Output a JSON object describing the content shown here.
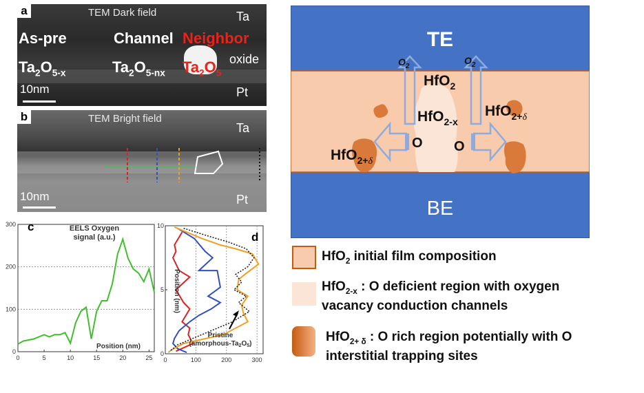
{
  "panel_a": {
    "letter": "a",
    "title": "TEM Dark field",
    "label_top_right": "Ta",
    "label_oxide": "oxide",
    "label_bottom_right": "Pt",
    "scale": "10nm",
    "as_pre": "As-pre",
    "channel": "Channel",
    "neighbor": "Neighbor",
    "ta2o5x_main": "Ta",
    "ta2o5x_sub1": "2",
    "ta2o5x_o": "O",
    "ta2o5x_sub2": "5-x",
    "ta2o5nx_main": "Ta",
    "ta2o5nx_sub1": "2",
    "ta2o5nx_o": "O",
    "ta2o5nx_sub2": "5-nx",
    "ta2o5_main": "Ta",
    "ta2o5_sub1": "2",
    "ta2o5_o": "O",
    "ta2o5_sub2": "5"
  },
  "panel_b": {
    "letter": "b",
    "title": "TEM Bright field",
    "label_top_right": "Ta",
    "label_bottom_right": "Pt",
    "scale": "10nm"
  },
  "panel_c": {
    "letter": "c",
    "legend_line1": "EELS Oxygen",
    "legend_line2": "signal (a.u.)",
    "xaxis_note": "Position (nm)",
    "color": "#3fbf2c"
  },
  "panel_d": {
    "letter": "d",
    "ylabel": "Position (nm)",
    "annot_line1": "Pristine",
    "annot_line2": "(amorphous-Ta",
    "annot_sub": "2",
    "annot_o": "O",
    "annot_sub2": "5",
    "annot_end": ")",
    "colors": {
      "red": "#e02020",
      "blue": "#3050c0",
      "orange": "#f0a020",
      "black": "#222222"
    }
  },
  "chart_data": [
    {
      "type": "line",
      "title": "EELS Oxygen signal (a.u.)",
      "xlabel": "Position (nm)",
      "ylabel": "",
      "xlim": [
        0,
        26
      ],
      "ylim": [
        0,
        300
      ],
      "xticks": [
        "0",
        "5",
        "10",
        "15",
        "20",
        "25"
      ],
      "yticks": [
        "0",
        "100",
        "200",
        "300"
      ],
      "series": [
        {
          "x": [
            0,
            1,
            3,
            5,
            6,
            7,
            8,
            9,
            10,
            11,
            12,
            13,
            14,
            15,
            16,
            17,
            18,
            19,
            20,
            21,
            22,
            23,
            24,
            25,
            26
          ],
          "values": [
            18,
            25,
            30,
            40,
            35,
            40,
            40,
            45,
            20,
            68,
            95,
            105,
            30,
            95,
            120,
            120,
            160,
            230,
            265,
            220,
            195,
            185,
            165,
            195,
            140
          ]
        }
      ]
    },
    {
      "type": "line",
      "title": "",
      "xlabel": "",
      "ylabel": "Position (nm)",
      "xlim": [
        0,
        320
      ],
      "ylim": [
        0,
        10
      ],
      "xticks": [
        "0",
        "100",
        "200",
        "300"
      ],
      "yticks": [
        "0",
        "5",
        "10"
      ],
      "series": [
        {
          "name": "red",
          "x": [
            55,
            30,
            35,
            25,
            45,
            80,
            35,
            60,
            80,
            55,
            80,
            75,
            90,
            35
          ],
          "y": [
            9.5,
            8.5,
            8.0,
            7.5,
            6.5,
            6.0,
            5.0,
            4.0,
            3.5,
            2.5,
            2.0,
            1.5,
            0.8,
            0.2
          ]
        },
        {
          "name": "blue",
          "x": [
            40,
            95,
            130,
            155,
            110,
            170,
            180,
            140,
            180,
            150,
            110,
            80,
            45,
            30,
            25,
            40,
            70
          ],
          "y": [
            9.8,
            9.0,
            8.0,
            7.5,
            6.5,
            6.5,
            5.2,
            4.5,
            4.0,
            3.5,
            3.0,
            2.5,
            1.8,
            1.2,
            0.8,
            0.4,
            0.1
          ]
        },
        {
          "name": "orange",
          "x": [
            30,
            120,
            180,
            230,
            285,
            305,
            260,
            240,
            235,
            270,
            250,
            255,
            270,
            190,
            60,
            20,
            10
          ],
          "y": [
            9.9,
            9.0,
            8.5,
            8.2,
            7.8,
            7.0,
            6.2,
            5.8,
            5.0,
            4.5,
            3.8,
            3.2,
            2.5,
            1.5,
            0.8,
            0.3,
            0.1
          ]
        },
        {
          "name": "black",
          "x": [
            60,
            140,
            210,
            265,
            290,
            270,
            230,
            250,
            225,
            265,
            240,
            275,
            220,
            120,
            40,
            15
          ],
          "y": [
            9.8,
            9.2,
            8.7,
            8.2,
            7.5,
            6.8,
            6.2,
            5.6,
            5.0,
            4.5,
            4.0,
            3.3,
            2.5,
            1.5,
            0.7,
            0.2
          ]
        }
      ]
    }
  ],
  "diagram": {
    "te": "TE",
    "be": "BE",
    "o2_left_o": "O",
    "o2_left_sub": "2",
    "o2_right_o": "O",
    "o2_right_sub": "2",
    "hfo2_main": "HfO",
    "hfo2_sub": "2",
    "hfo2x_main": "HfO",
    "hfo2x_sub": "2-x",
    "hfo2d_right_main": "HfO",
    "hfo2d_right_sub": "2+",
    "hfo2d_right_delta": "δ",
    "hfo2d_left_main": "HfO",
    "hfo2d_left_sub": "2+",
    "hfo2d_left_delta": "δ",
    "o_left": "O",
    "o_right": "O",
    "colors": {
      "electrode": "#4472c4",
      "film": "#f8cbad",
      "channel": "#fbe5d6",
      "rich": "#d97a3a",
      "arrow": "#8faadc"
    }
  },
  "legend": {
    "item1_main": "HfO",
    "item1_sub": "2",
    "item1_rest": " initial film composition",
    "item2_main": "HfO",
    "item2_sub": "2-x",
    "item2_rest": " : O deficient region with oxygen",
    "item2_line2": "vacancy  conduction channels",
    "item3_main": "HfO",
    "item3_sub": "2+ δ",
    "item3_rest": " : O rich region potentially with O",
    "item3_line2": "interstitial trapping sites"
  }
}
